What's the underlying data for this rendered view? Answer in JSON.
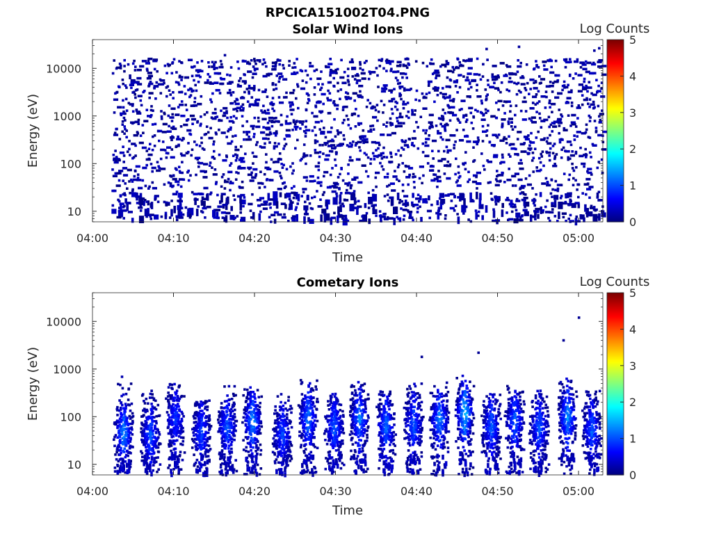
{
  "figure": {
    "title": "RPCICA151002T04.PNG"
  },
  "chart_data": [
    {
      "type": "heatmap",
      "title": "Solar Wind Ions",
      "xlabel": "Time",
      "ylabel": "Energy (eV)",
      "x_tick_labels": [
        "04:00",
        "04:10",
        "04:20",
        "04:30",
        "04:40",
        "04:50",
        "05:00"
      ],
      "x_tick_minutes": [
        0,
        10,
        20,
        30,
        40,
        50,
        60
      ],
      "xlim_minutes": [
        0,
        63
      ],
      "y_scale": "log",
      "ylim": [
        6,
        40000
      ],
      "y_ticks": [
        10,
        100,
        1000,
        10000
      ],
      "y_tick_labels": [
        "10",
        "100",
        "1000",
        "10000"
      ],
      "colorbar": {
        "label": "Log Counts",
        "range": [
          0,
          5
        ],
        "ticks": [
          "0",
          "1",
          "2",
          "3",
          "4",
          "5"
        ],
        "colormap": "jet"
      },
      "data_time_range_minutes": [
        2.3,
        63
      ],
      "pattern": "sparse low counts (log ~0.0-0.3) scattered across ~10 eV to ~20000 eV over the full interval, denser near the 10-20 eV floor"
    },
    {
      "type": "heatmap",
      "title": "Cometary Ions",
      "xlabel": "Time",
      "ylabel": "Energy (eV)",
      "x_tick_labels": [
        "04:00",
        "04:10",
        "04:20",
        "04:30",
        "04:40",
        "04:50",
        "05:00"
      ],
      "x_tick_minutes": [
        0,
        10,
        20,
        30,
        40,
        50,
        60
      ],
      "xlim_minutes": [
        0,
        63
      ],
      "y_scale": "log",
      "ylim": [
        6,
        40000
      ],
      "y_ticks": [
        10,
        100,
        1000,
        10000
      ],
      "y_tick_labels": [
        "10",
        "100",
        "1000",
        "10000"
      ],
      "colorbar": {
        "label": "Log Counts",
        "range": [
          0,
          5
        ],
        "ticks": [
          "0",
          "1",
          "2",
          "3",
          "4",
          "5"
        ],
        "colormap": "jet"
      },
      "bursts": [
        {
          "t_minutes": 3.7,
          "peak_eV": 45,
          "top_eV": 700,
          "peak_log": 1.3
        },
        {
          "t_minutes": 7.0,
          "peak_eV": 40,
          "top_eV": 350,
          "peak_log": 1.0
        },
        {
          "t_minutes": 10.1,
          "peak_eV": 90,
          "top_eV": 500,
          "peak_log": 0.8
        },
        {
          "t_minutes": 13.3,
          "peak_eV": 45,
          "top_eV": 220,
          "peak_log": 0.9
        },
        {
          "t_minutes": 16.5,
          "peak_eV": 60,
          "top_eV": 500,
          "peak_log": 1.0
        },
        {
          "t_minutes": 19.6,
          "peak_eV": 80,
          "top_eV": 500,
          "peak_log": 1.3
        },
        {
          "t_minutes": 23.3,
          "peak_eV": 40,
          "top_eV": 300,
          "peak_log": 0.9
        },
        {
          "t_minutes": 26.5,
          "peak_eV": 90,
          "top_eV": 600,
          "peak_log": 1.2
        },
        {
          "t_minutes": 29.7,
          "peak_eV": 60,
          "top_eV": 300,
          "peak_log": 1.0
        },
        {
          "t_minutes": 32.8,
          "peak_eV": 90,
          "top_eV": 550,
          "peak_log": 1.2
        },
        {
          "t_minutes": 36.1,
          "peak_eV": 60,
          "top_eV": 350,
          "peak_log": 1.1
        },
        {
          "t_minutes": 39.5,
          "peak_eV": 70,
          "top_eV": 500,
          "peak_log": 1.0
        },
        {
          "t_minutes": 42.7,
          "peak_eV": 90,
          "top_eV": 600,
          "peak_log": 1.2
        },
        {
          "t_minutes": 45.8,
          "peak_eV": 120,
          "top_eV": 900,
          "peak_log": 1.6
        },
        {
          "t_minutes": 49.1,
          "peak_eV": 60,
          "top_eV": 300,
          "peak_log": 1.0
        },
        {
          "t_minutes": 52.0,
          "peak_eV": 80,
          "top_eV": 450,
          "peak_log": 1.1
        },
        {
          "t_minutes": 55.0,
          "peak_eV": 60,
          "top_eV": 350,
          "peak_log": 1.0
        },
        {
          "t_minutes": 58.5,
          "peak_eV": 100,
          "top_eV": 650,
          "peak_log": 1.3
        },
        {
          "t_minutes": 61.5,
          "peak_eV": 50,
          "top_eV": 350,
          "peak_log": 1.0
        }
      ],
      "isolated_points": [
        {
          "t_minutes": 40.5,
          "eV": 1800,
          "log": 0.1
        },
        {
          "t_minutes": 47.5,
          "eV": 2200,
          "log": 0.1
        },
        {
          "t_minutes": 58.0,
          "eV": 4000,
          "log": 0.1
        },
        {
          "t_minutes": 59.9,
          "eV": 12000,
          "log": 0.1
        }
      ]
    }
  ]
}
